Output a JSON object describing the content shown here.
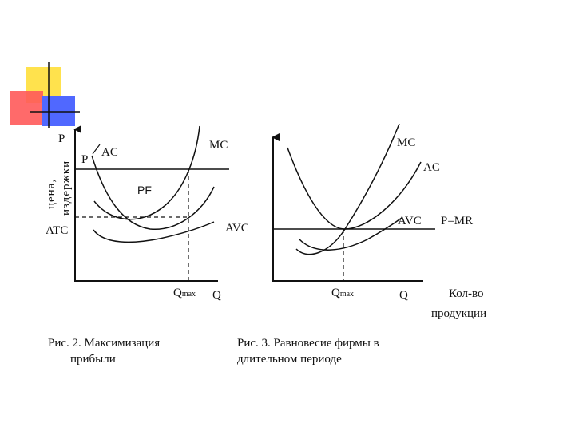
{
  "deco": {
    "yellow": "#ffe24d",
    "red": "#ff5a5a",
    "blue": "#5068ff"
  },
  "fig1": {
    "label_p_axis": "P",
    "label_ylabel_1": "цена,",
    "label_ylabel_2": "издержки",
    "label_p": "P",
    "label_ac": "AC",
    "label_mc": "MC",
    "label_pf": "PF",
    "label_avc": "AVC",
    "label_atc": "ATC",
    "label_q_base": "Q",
    "label_q_sub": "max",
    "label_q_axis": "Q",
    "caption_line1": "Рис.   2.   Максимизация",
    "caption_line2": "прибыли"
  },
  "fig2": {
    "label_mc": "MC",
    "label_ac": "AC",
    "label_avc": "AVC",
    "label_pmr": "P=MR",
    "label_q_base": "Q",
    "label_q_sub": "max",
    "label_q_axis": "Q",
    "label_qty_1": "Кол-во",
    "label_qty_2": "продукции",
    "caption_line1": "Рис.  3.  Равновесие  фирмы  в",
    "caption_line2": "длительном периоде"
  }
}
